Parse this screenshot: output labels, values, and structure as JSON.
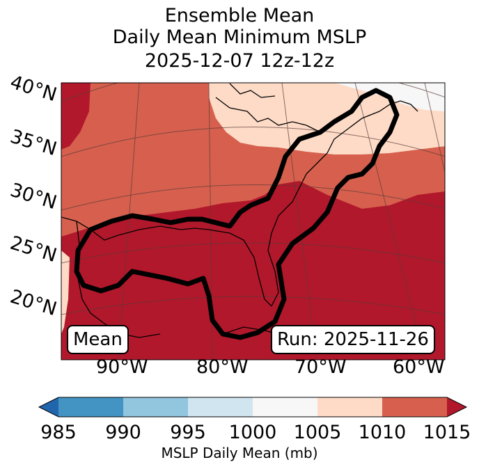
{
  "title": {
    "line1": "Ensemble Mean",
    "line2": "Daily Mean Minimum MSLP",
    "line3": "2025-12-07 12z-12z"
  },
  "map": {
    "lat_labels": [
      "40°N",
      "35°N",
      "30°N",
      "25°N",
      "20°N"
    ],
    "lon_labels": [
      "90°W",
      "80°W",
      "70°W",
      "60°W"
    ],
    "mean_label": "Mean",
    "run_label": "Run: 2025-11-26",
    "contour_color": "#000000"
  },
  "colorbar": {
    "label": "MSLP Daily Mean (mb)",
    "ticks": [
      "985",
      "990",
      "995",
      "1000",
      "1005",
      "1010",
      "1015"
    ],
    "colors": [
      "#2166ac",
      "#4393c3",
      "#92c5de",
      "#d1e5f0",
      "#f7f7f7",
      "#fddbc7",
      "#d6604d",
      "#b2182b"
    ]
  }
}
